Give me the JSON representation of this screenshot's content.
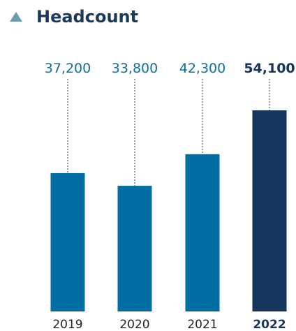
{
  "header": {
    "title": "Headcount",
    "icon": "triangle-up-icon"
  },
  "colors": {
    "bar": "#006ea3",
    "highlight_bar": "#14365c",
    "label": "#0a6fa4",
    "highlight_label": "#14365c",
    "year_label": "#222222",
    "leader": "#2a3f5a"
  },
  "chart_data": {
    "type": "bar",
    "title": "Headcount",
    "categories": [
      "2019",
      "2020",
      "2021",
      "2022"
    ],
    "values": [
      37200,
      33800,
      42300,
      54100
    ],
    "value_labels": [
      "37,200",
      "33,800",
      "42,300",
      "54,100"
    ],
    "highlight_index": 3,
    "ylim": [
      0,
      56000
    ],
    "grid": false,
    "legend": "none"
  }
}
